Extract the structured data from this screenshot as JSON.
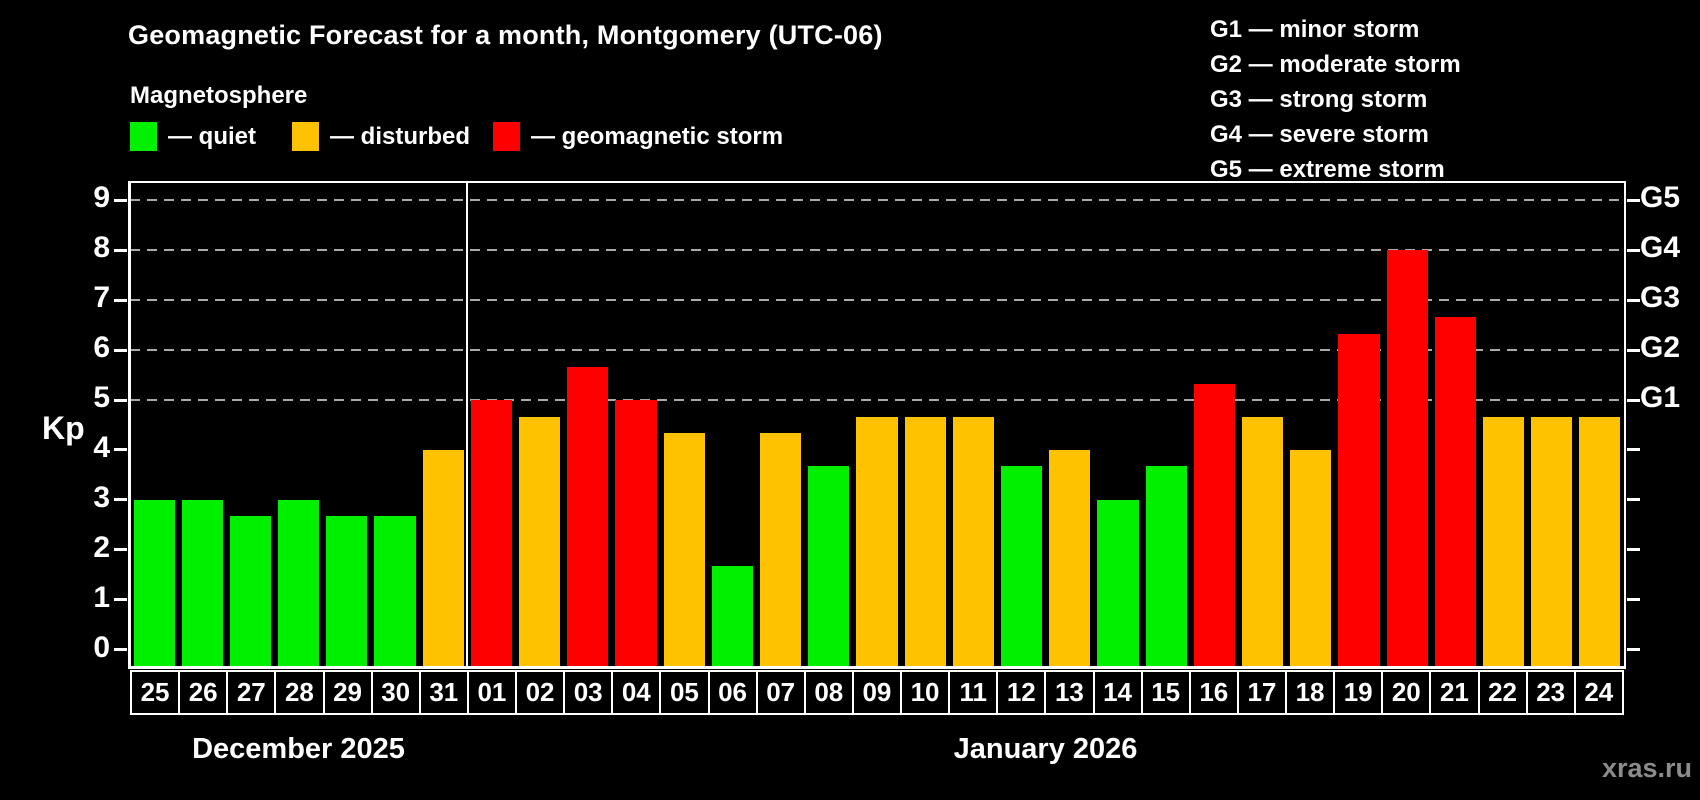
{
  "title": "Geomagnetic Forecast for a month, Montgomery (UTC-06)",
  "subtitle": "Magnetosphere",
  "watermark": "xras.ru",
  "colors": {
    "quiet": "#00f000",
    "disturbed": "#ffc200",
    "storm": "#ff0000",
    "axis": "#ffffff",
    "grid": "#aaaaaa",
    "watermark_gray": "#8c8c8c",
    "background": "#000000"
  },
  "legend": {
    "items": [
      {
        "label": "— quiet",
        "level": "quiet"
      },
      {
        "label": "— disturbed",
        "level": "disturbed"
      },
      {
        "label": "— geomagnetic storm",
        "level": "storm"
      }
    ]
  },
  "storm_scale_legend": [
    "G1 — minor storm",
    "G2 — moderate storm",
    "G3 — strong storm",
    "G4 — severe storm",
    "G5 — extreme storm"
  ],
  "chart_data": {
    "type": "bar",
    "ylabel": "Kp",
    "xlabel": "",
    "ylim": [
      0,
      9
    ],
    "y_ticks": [
      0,
      1,
      2,
      3,
      4,
      5,
      6,
      7,
      8,
      9
    ],
    "gridlines_at": [
      5,
      6,
      7,
      8,
      9
    ],
    "grid": "dashed horizontal lines at storm levels G1-G5 only",
    "legend_position": "top",
    "right_axis": [
      {
        "kp": 5,
        "label": "G1"
      },
      {
        "kp": 6,
        "label": "G2"
      },
      {
        "kp": 7,
        "label": "G3"
      },
      {
        "kp": 8,
        "label": "G4"
      },
      {
        "kp": 9,
        "label": "G5"
      }
    ],
    "months": [
      {
        "label": "December 2025",
        "days": [
          "25",
          "26",
          "27",
          "28",
          "29",
          "30",
          "31"
        ],
        "values": [
          3.0,
          3.0,
          2.67,
          3.0,
          2.67,
          2.67,
          4.0
        ],
        "levels": [
          "quiet",
          "quiet",
          "quiet",
          "quiet",
          "quiet",
          "quiet",
          "disturbed"
        ]
      },
      {
        "label": "January 2026",
        "days": [
          "01",
          "02",
          "03",
          "04",
          "05",
          "06",
          "07",
          "08",
          "09",
          "10",
          "11",
          "12",
          "13",
          "14",
          "15",
          "16",
          "17",
          "18",
          "19",
          "20",
          "21",
          "22",
          "23",
          "24"
        ],
        "values": [
          5.0,
          4.67,
          5.67,
          5.0,
          4.33,
          1.67,
          4.33,
          3.67,
          4.67,
          4.67,
          4.67,
          3.67,
          4.0,
          3.0,
          3.67,
          5.33,
          4.67,
          4.0,
          6.33,
          8.0,
          6.67,
          4.67,
          4.67,
          4.67
        ],
        "levels": [
          "storm",
          "disturbed",
          "storm",
          "storm",
          "disturbed",
          "quiet",
          "disturbed",
          "quiet",
          "disturbed",
          "disturbed",
          "disturbed",
          "quiet",
          "disturbed",
          "quiet",
          "quiet",
          "storm",
          "disturbed",
          "disturbed",
          "storm",
          "storm",
          "storm",
          "disturbed",
          "disturbed",
          "disturbed"
        ]
      }
    ]
  }
}
